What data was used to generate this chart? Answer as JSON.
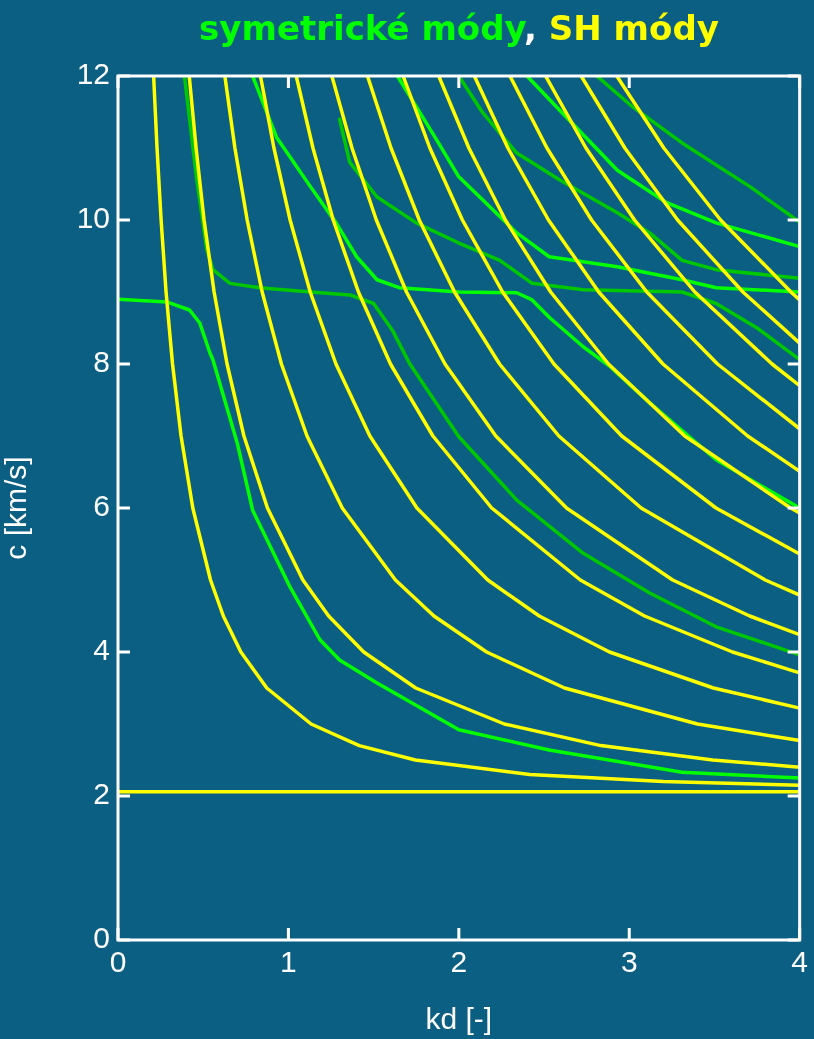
{
  "chart_data": {
    "type": "line",
    "title": "symetrické módy, SH módy",
    "xlabel": "kd [-]",
    "ylabel": "c [km/s]",
    "xlim": [
      0,
      4
    ],
    "xticks": [
      0,
      1,
      2,
      3,
      4
    ],
    "ylim": [
      0,
      12
    ],
    "yticks": [
      0,
      2,
      4,
      6,
      8,
      10,
      12
    ],
    "grid": false,
    "legend": false,
    "marker": "none",
    "line_style": "solid",
    "series": [
      {
        "color": "#ffff00",
        "x": [
          0,
          4
        ],
        "values": [
          2.06,
          2.06
        ]
      },
      {
        "color": "#ffff00",
        "x": [
          0.209,
          0.229,
          0.253,
          0.282,
          0.32,
          0.37,
          0.439,
          0.543,
          0.618,
          0.721,
          0.873,
          1.133,
          1.416,
          1.745,
          2.416,
          3.2,
          4
        ],
        "values": [
          12,
          11,
          10,
          9,
          8,
          7,
          6,
          5,
          4.5,
          4,
          3.5,
          3,
          2.7,
          2.5,
          2.3,
          2.2,
          2.15
        ]
      },
      {
        "color": "#ffff00",
        "x": [
          0.418,
          0.458,
          0.505,
          0.564,
          0.64,
          0.739,
          0.877,
          1.085,
          1.236,
          1.442,
          1.747,
          2.267,
          2.833,
          3.49,
          4
        ],
        "values": [
          12,
          11,
          10,
          9,
          8,
          7,
          6,
          5,
          4.5,
          4,
          3.5,
          3,
          2.7,
          2.5,
          2.4
        ]
      },
      {
        "color": "#ffff00",
        "x": [
          0.627,
          0.686,
          0.758,
          0.846,
          0.959,
          1.109,
          1.316,
          1.628,
          1.854,
          2.163,
          2.62,
          3.4,
          4
        ],
        "values": [
          12,
          11,
          10,
          9,
          8,
          7,
          6,
          5,
          4.5,
          4,
          3.5,
          3,
          2.77
        ]
      },
      {
        "color": "#ffff00",
        "x": [
          0.836,
          0.915,
          1.01,
          1.128,
          1.279,
          1.478,
          1.754,
          2.17,
          2.472,
          2.884,
          3.494,
          4
        ],
        "values": [
          12,
          11,
          10,
          9,
          8,
          7,
          6,
          5,
          4.5,
          4,
          3.5,
          3.22
        ]
      },
      {
        "color": "#ffff00",
        "x": [
          1.046,
          1.144,
          1.263,
          1.411,
          1.599,
          1.848,
          2.193,
          2.713,
          3.09,
          3.606,
          4
        ],
        "values": [
          12,
          11,
          10,
          9,
          8,
          7,
          6,
          5,
          4.5,
          4,
          3.71
        ]
      },
      {
        "color": "#ffff00",
        "x": [
          1.255,
          1.373,
          1.516,
          1.693,
          1.919,
          2.217,
          2.632,
          3.255,
          3.707,
          4
        ],
        "values": [
          12,
          11,
          10,
          9,
          8,
          7,
          6,
          5,
          4.5,
          4.24
        ]
      },
      {
        "color": "#ffff00",
        "x": [
          1.464,
          1.602,
          1.768,
          1.975,
          2.239,
          2.587,
          3.07,
          3.798,
          4
        ],
        "values": [
          12,
          11,
          10,
          9,
          8,
          7,
          6,
          5,
          4.79
        ]
      },
      {
        "color": "#ffff00",
        "x": [
          1.673,
          1.83,
          2.021,
          2.257,
          2.558,
          2.956,
          3.509,
          4
        ],
        "values": [
          12,
          11,
          10,
          9,
          8,
          7,
          6,
          5.36
        ]
      },
      {
        "color": "#ffff00",
        "x": [
          1.882,
          2.059,
          2.273,
          2.539,
          2.878,
          3.326,
          3.947,
          4
        ],
        "values": [
          12,
          11,
          10,
          9,
          8,
          7,
          6,
          5.93
        ]
      },
      {
        "color": "#ffff00",
        "x": [
          2.091,
          2.288,
          2.526,
          2.821,
          3.198,
          3.695,
          4
        ],
        "values": [
          12,
          11,
          10,
          9,
          8,
          7,
          6.51
        ]
      },
      {
        "color": "#ffff00",
        "x": [
          2.3,
          2.517,
          2.779,
          3.103,
          3.518,
          4
        ],
        "values": [
          12,
          11,
          10,
          9,
          8,
          7.1
        ]
      },
      {
        "color": "#ffff00",
        "x": [
          2.509,
          2.746,
          3.031,
          3.385,
          3.838,
          4
        ],
        "values": [
          12,
          11,
          10,
          9,
          8,
          7.7
        ]
      },
      {
        "color": "#ffff00",
        "x": [
          2.718,
          2.974,
          3.284,
          3.667,
          4
        ],
        "values": [
          12,
          11,
          10,
          9,
          8.29
        ]
      },
      {
        "color": "#ffff00",
        "x": [
          2.927,
          3.203,
          3.536,
          3.949,
          4
        ],
        "values": [
          12,
          11,
          10,
          9,
          8.89
        ]
      },
      {
        "color": "#00c800",
        "x": [
          0.39,
          0.46,
          0.52,
          0.557,
          0.657,
          0.83,
          1.13,
          1.36,
          1.5,
          1.61,
          1.71,
          2.0,
          2.34,
          2.73,
          3.12,
          3.51,
          4
        ],
        "values": [
          12,
          10.6,
          9.6,
          9.31,
          9.12,
          9.06,
          9.0,
          8.96,
          8.84,
          8.47,
          8.01,
          6.99,
          6.11,
          5.37,
          4.82,
          4.35,
          3.96
        ]
      },
      {
        "color": "#00c800",
        "x": [
          1.3,
          1.36,
          1.52,
          1.75,
          2.0,
          2.24,
          2.43,
          2.73,
          3.31,
          3.51,
          3.75,
          4
        ],
        "values": [
          11.4,
          10.8,
          10.32,
          9.96,
          9.68,
          9.44,
          9.12,
          9.03,
          9.0,
          8.84,
          8.5,
          8.06
        ]
      },
      {
        "color": "#00c800",
        "x": [
          2.0,
          2.14,
          2.34,
          2.59,
          2.93,
          3.12,
          3.31,
          3.51,
          4
        ],
        "values": [
          12,
          11.49,
          10.93,
          10.56,
          10.1,
          9.82,
          9.44,
          9.31,
          9.19
        ]
      },
      {
        "color": "#00c800",
        "x": [
          2.81,
          3.02,
          3.31,
          3.71,
          4
        ],
        "values": [
          12,
          11.57,
          11.07,
          10.46,
          9.97
        ]
      },
      {
        "color": "#00ff00",
        "x": [
          0.79,
          0.93,
          1.13,
          1.28,
          1.4,
          1.52,
          1.65,
          2.0,
          2.34,
          2.43,
          2.53,
          2.73,
          2.89,
          3.12,
          3.51,
          4
        ],
        "values": [
          12,
          11.15,
          10.46,
          9.96,
          9.49,
          9.17,
          9.06,
          9.0,
          8.99,
          8.89,
          8.65,
          8.24,
          7.96,
          7.46,
          6.67,
          6.0
        ]
      },
      {
        "color": "#00ff00",
        "x": [
          1.64,
          1.86,
          2.0,
          2.34,
          2.53,
          2.93,
          3.31,
          3.51,
          4
        ],
        "values": [
          12,
          11.15,
          10.6,
          9.82,
          9.49,
          9.35,
          9.17,
          9.06,
          9.0
        ]
      },
      {
        "color": "#00ff00",
        "x": [
          2.4,
          2.63,
          2.93,
          3.22,
          3.51,
          4
        ],
        "values": [
          12,
          11.43,
          10.69,
          10.24,
          9.96,
          9.63
        ]
      },
      {
        "color": "#00ff00",
        "x": [
          0,
          0.29,
          0.42,
          0.48,
          0.54,
          0.557,
          0.7,
          0.79,
          1.01,
          1.185,
          1.3,
          1.52,
          2.0,
          2.53,
          3.31,
          4
        ],
        "values": [
          8.9,
          8.86,
          8.75,
          8.57,
          8.15,
          8.06,
          6.9,
          5.97,
          4.9,
          4.17,
          3.89,
          3.57,
          2.92,
          2.64,
          2.33,
          2.25
        ]
      }
    ]
  }
}
